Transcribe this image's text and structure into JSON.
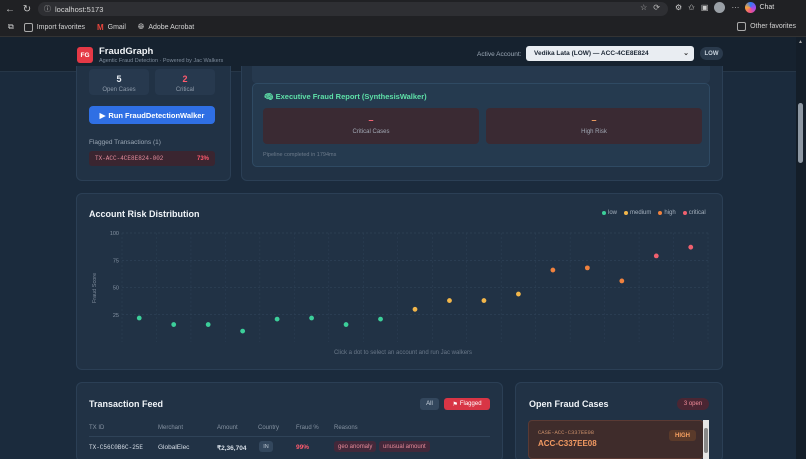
{
  "browser": {
    "url": "localhost:5173",
    "chat_label": "Chat",
    "bookmarks": [
      {
        "label": "Import favorites",
        "icon": "import-icon"
      },
      {
        "label": "Gmail",
        "icon": "gmail-icon"
      },
      {
        "label": "Adobe Acrobat",
        "icon": "globe-icon"
      }
    ],
    "other_favorites": "Other favorites"
  },
  "header": {
    "logo_text": "FG",
    "title": "FraudGraph",
    "subtitle": "Agentic Fraud Detection · Powered by Jac Walkers",
    "account_label": "Active Account:",
    "account_value": "Vedika Lata (LOW) — ACC-4CE8E824",
    "risk_badge": "LOW"
  },
  "left_panel": {
    "stats": [
      {
        "value": "5",
        "label": "Open Cases",
        "color": "#e8edf3"
      },
      {
        "value": "2",
        "label": "Critical",
        "color": "#ff5a6e"
      }
    ],
    "run_button": "Run FraudDetectionWalker",
    "flagged_title": "Flagged Transactions (1)",
    "flagged": [
      {
        "tx": "TX-ACC-4CE8E824-002",
        "pct": "73%"
      }
    ]
  },
  "exec_report": {
    "title": "Executive Fraud Report (SynthesisWalker)",
    "boxes": [
      {
        "value": "–",
        "label": "Critical Cases"
      },
      {
        "value": "–",
        "label": "High Risk"
      }
    ],
    "pipeline": "Pipeline completed in 1794ms"
  },
  "risk_chart": {
    "title": "Account Risk Distribution",
    "ylabel": "Fraud Score",
    "hint": "Click a dot to select an account and run Jac walkers",
    "legend": [
      {
        "label": "low",
        "color": "#3ccf9a"
      },
      {
        "label": "medium",
        "color": "#f2b64a"
      },
      {
        "label": "high",
        "color": "#f0823e"
      },
      {
        "label": "critical",
        "color": "#f0606e"
      }
    ]
  },
  "chart_data": {
    "type": "scatter",
    "ylabel": "Fraud Score",
    "ylim": [
      0,
      100
    ],
    "yticks": [
      "100",
      "75",
      "50",
      "25"
    ],
    "grid": true,
    "points": [
      {
        "x": 1,
        "y": 22,
        "level": "low"
      },
      {
        "x": 2,
        "y": 16,
        "level": "low"
      },
      {
        "x": 3,
        "y": 16,
        "level": "low"
      },
      {
        "x": 4,
        "y": 10,
        "level": "low"
      },
      {
        "x": 5,
        "y": 21,
        "level": "low"
      },
      {
        "x": 6,
        "y": 22,
        "level": "low"
      },
      {
        "x": 7,
        "y": 16,
        "level": "low"
      },
      {
        "x": 8,
        "y": 21,
        "level": "low"
      },
      {
        "x": 9,
        "y": 30,
        "level": "medium"
      },
      {
        "x": 10,
        "y": 38,
        "level": "medium"
      },
      {
        "x": 11,
        "y": 38,
        "level": "medium"
      },
      {
        "x": 12,
        "y": 44,
        "level": "medium"
      },
      {
        "x": 13,
        "y": 66,
        "level": "high"
      },
      {
        "x": 14,
        "y": 68,
        "level": "high"
      },
      {
        "x": 15,
        "y": 56,
        "level": "high"
      },
      {
        "x": 16,
        "y": 79,
        "level": "critical"
      },
      {
        "x": 17,
        "y": 87,
        "level": "critical"
      }
    ]
  },
  "feed": {
    "title": "Transaction Feed",
    "filter_all": "All",
    "filter_flagged": "Flagged",
    "columns": [
      "TX ID",
      "Merchant",
      "Amount",
      "Country",
      "Fraud %",
      "Reasons"
    ],
    "rows": [
      {
        "tx": "TX-C56C0B6C-25E",
        "merchant": "GlobalElec",
        "amount": "₹2,36,704",
        "country": "IN",
        "fraud": "99%",
        "reasons": [
          "geo anomaly",
          "unusual amount"
        ]
      }
    ]
  },
  "cases": {
    "title": "Open Fraud Cases",
    "open_count": "3 open",
    "items": [
      {
        "case_small": "CASE-ACC-C337EE08",
        "case_id": "ACC-C337EE08",
        "severity": "HIGH"
      }
    ]
  }
}
